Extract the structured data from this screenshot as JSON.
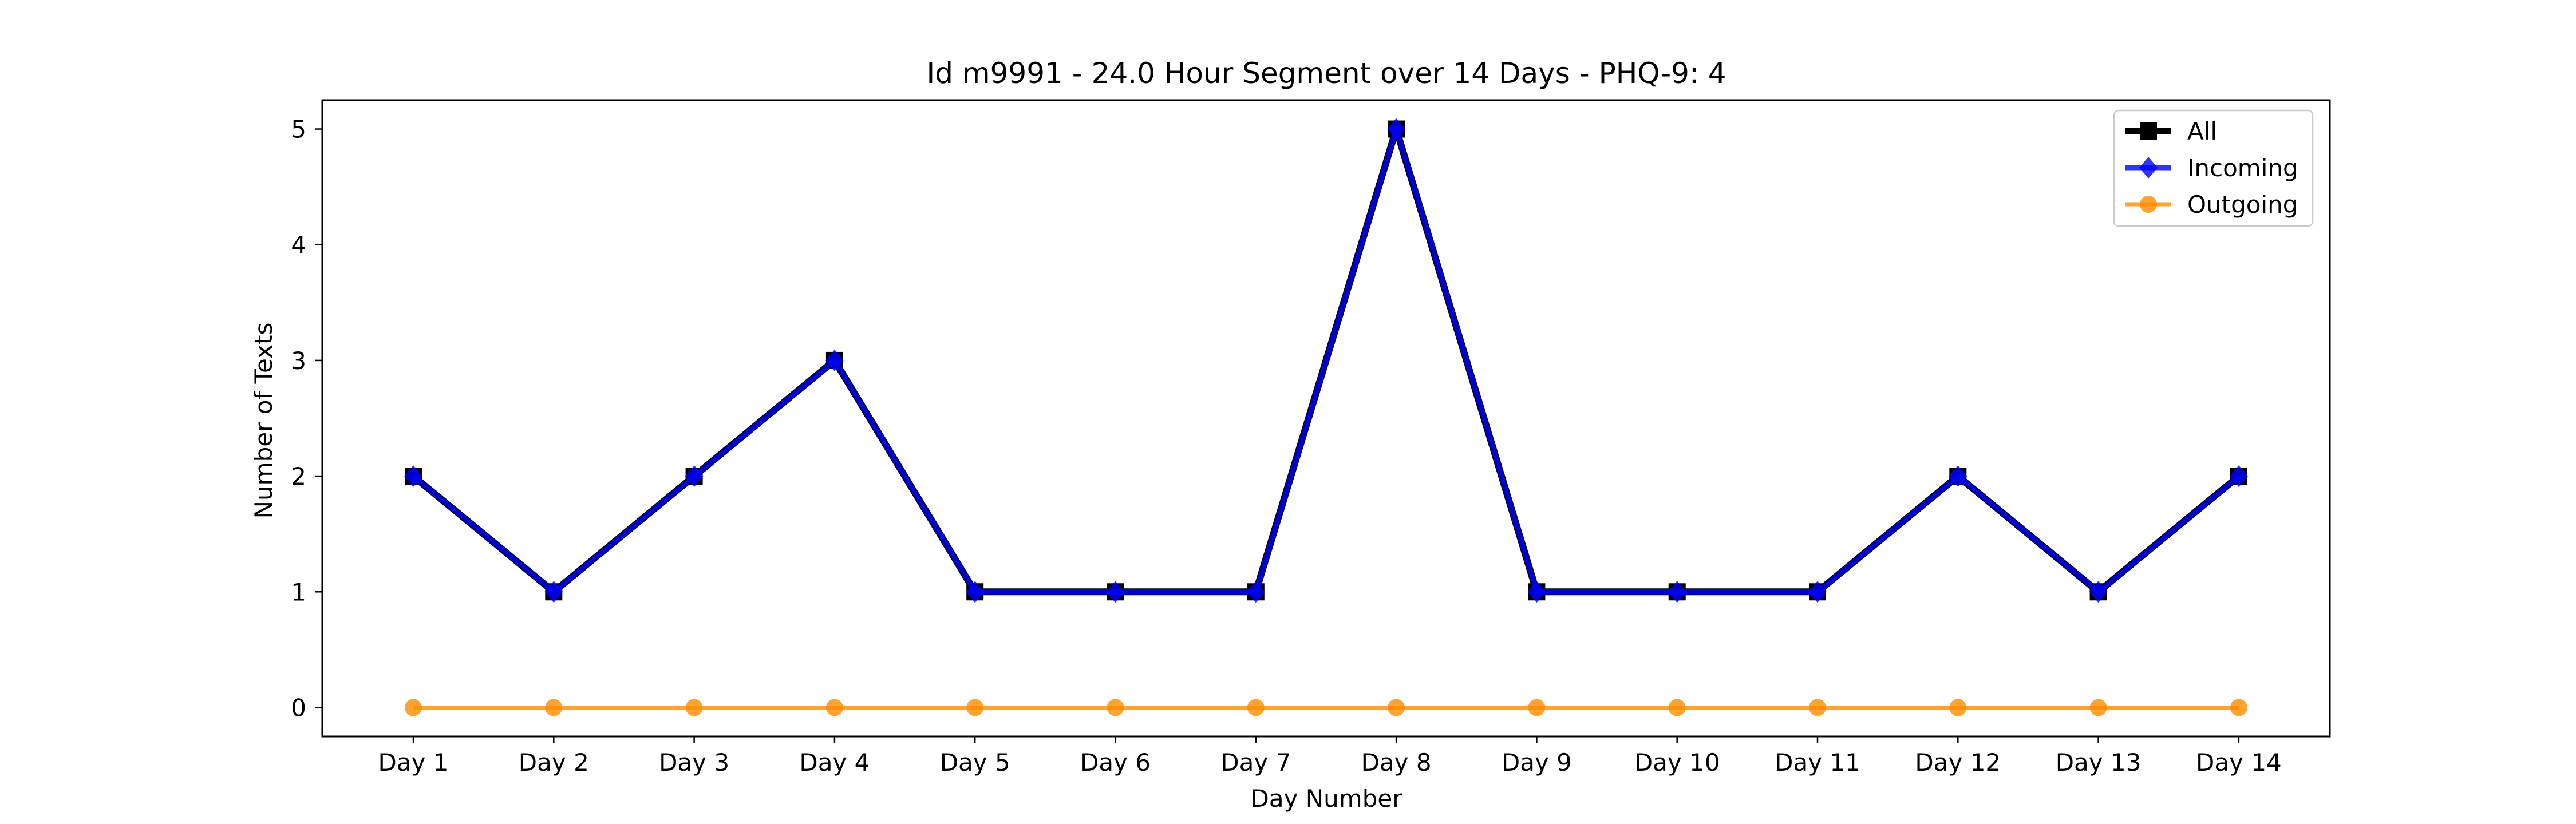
{
  "chart_data": {
    "type": "line",
    "title": "Id m9991 - 24.0 Hour Segment over 14 Days - PHQ-9: 4",
    "xlabel": "Day Number",
    "ylabel": "Number of Texts",
    "categories": [
      "Day 1",
      "Day 2",
      "Day 3",
      "Day 4",
      "Day 5",
      "Day 6",
      "Day 7",
      "Day 8",
      "Day 9",
      "Day 10",
      "Day 11",
      "Day 12",
      "Day 13",
      "Day 14"
    ],
    "yticks": [
      0,
      1,
      2,
      3,
      4,
      5
    ],
    "ylim": [
      -0.25,
      5.25
    ],
    "grid": false,
    "legend_position": "top-right",
    "series": [
      {
        "name": "All",
        "values": [
          2,
          1,
          2,
          3,
          1,
          1,
          1,
          5,
          1,
          1,
          1,
          2,
          1,
          2
        ],
        "color": "#000000",
        "marker": "square"
      },
      {
        "name": "Incoming",
        "values": [
          2,
          1,
          2,
          3,
          1,
          1,
          1,
          5,
          1,
          1,
          1,
          2,
          1,
          2
        ],
        "color": "#0000ff",
        "marker": "diamond"
      },
      {
        "name": "Outgoing",
        "values": [
          0,
          0,
          0,
          0,
          0,
          0,
          0,
          0,
          0,
          0,
          0,
          0,
          0,
          0
        ],
        "color": "#ff8c00",
        "marker": "circle"
      }
    ]
  }
}
